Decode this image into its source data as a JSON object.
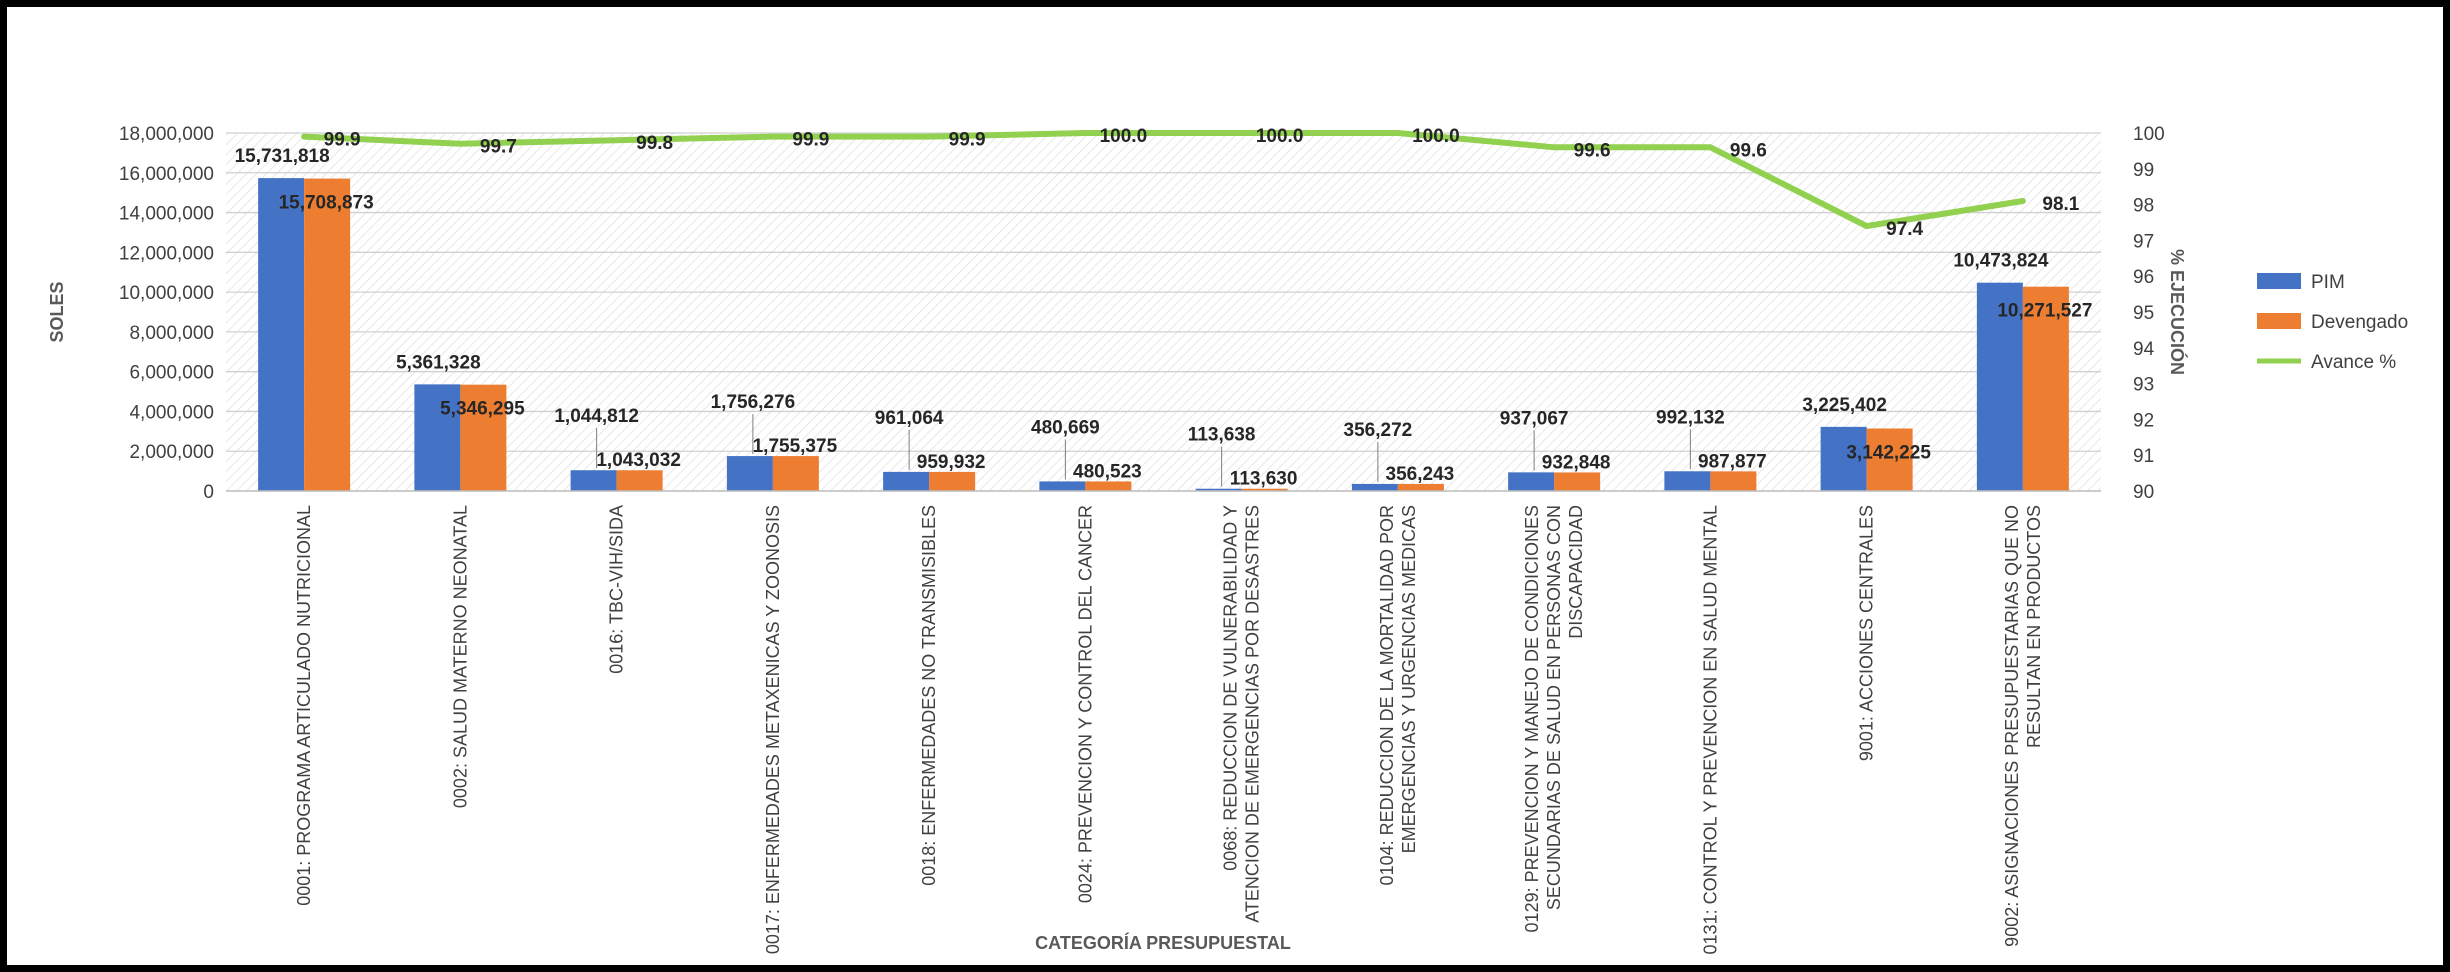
{
  "chart_data": {
    "type": "bar",
    "xlabel": "CATEGORÍA PRESUPUESTAL",
    "ylabel": "SOLES",
    "y2label": "% EJECUCIÓN",
    "ylim": [
      0,
      18000000
    ],
    "y2lim": [
      90,
      100
    ],
    "yticks": [
      "0",
      "2,000,000",
      "4,000,000",
      "6,000,000",
      "8,000,000",
      "10,000,000",
      "12,000,000",
      "14,000,000",
      "16,000,000",
      "18,000,000"
    ],
    "y2ticks": [
      "90",
      "91",
      "92",
      "93",
      "94",
      "95",
      "96",
      "97",
      "98",
      "99",
      "100"
    ],
    "legend_position": "right",
    "categories": [
      [
        "0001: PROGRAMA ARTICULADO NUTRICIONAL"
      ],
      [
        "0002: SALUD MATERNO NEONATAL"
      ],
      [
        "0016: TBC-VIH/SIDA"
      ],
      [
        "0017: ENFERMEDADES METAXENICAS Y ZOONOSIS"
      ],
      [
        "0018: ENFERMEDADES NO TRANSMISIBLES"
      ],
      [
        "0024: PREVENCION Y CONTROL DEL CANCER"
      ],
      [
        "0068: REDUCCION DE VULNERABILIDAD Y",
        "ATENCION DE EMERGENCIAS POR DESASTRES"
      ],
      [
        "0104: REDUCCION DE LA MORTALIDAD POR",
        "EMERGENCIAS Y URGENCIAS MEDICAS"
      ],
      [
        "0129: PREVENCION Y MANEJO DE CONDICIONES",
        "SECUNDARIAS DE SALUD EN PERSONAS CON",
        "DISCAPACIDAD"
      ],
      [
        "0131: CONTROL Y PREVENCION EN SALUD MENTAL"
      ],
      [
        "9001: ACCIONES CENTRALES"
      ],
      [
        "9002: ASIGNACIONES PRESUPUESTARIAS QUE NO",
        "RESULTAN EN PRODUCTOS"
      ]
    ],
    "series": [
      {
        "name": "PIM",
        "type": "bar",
        "axis": "left",
        "color": "#4472C4",
        "values": [
          15731818,
          5361328,
          1044812,
          1756276,
          961064,
          480669,
          113638,
          356272,
          937067,
          992132,
          3225402,
          10473824
        ],
        "labels": [
          "15,731,818",
          "5,361,328",
          "1,044,812",
          "1,756,276",
          "961,064",
          "480,669",
          "113,638",
          "356,272",
          "937,067",
          "992,132",
          "3,225,402",
          "10,473,824"
        ]
      },
      {
        "name": "Devengado",
        "type": "bar",
        "axis": "left",
        "color": "#ED7D31",
        "values": [
          15708873,
          5346295,
          1043032,
          1755375,
          959932,
          480523,
          113630,
          356243,
          932848,
          987877,
          3142225,
          10271527
        ],
        "labels": [
          "15,708,873",
          "5,346,295",
          "1,043,032",
          "1,755,375",
          "959,932",
          "480,523",
          "113,630",
          "356,243",
          "932,848",
          "987,877",
          "3,142,225",
          "10,271,527"
        ]
      },
      {
        "name": "Avance %",
        "type": "line",
        "axis": "right",
        "color": "#92D050",
        "values": [
          99.9,
          99.7,
          99.8,
          99.9,
          99.9,
          100.0,
          100.0,
          100.0,
          99.6,
          99.6,
          97.4,
          98.1
        ],
        "labels": [
          "99.9",
          "99.7",
          "99.8",
          "99.9",
          "99.9",
          "100.0",
          "100.0",
          "100.0",
          "99.6",
          "99.6",
          "97.4",
          "98.1"
        ]
      }
    ]
  }
}
